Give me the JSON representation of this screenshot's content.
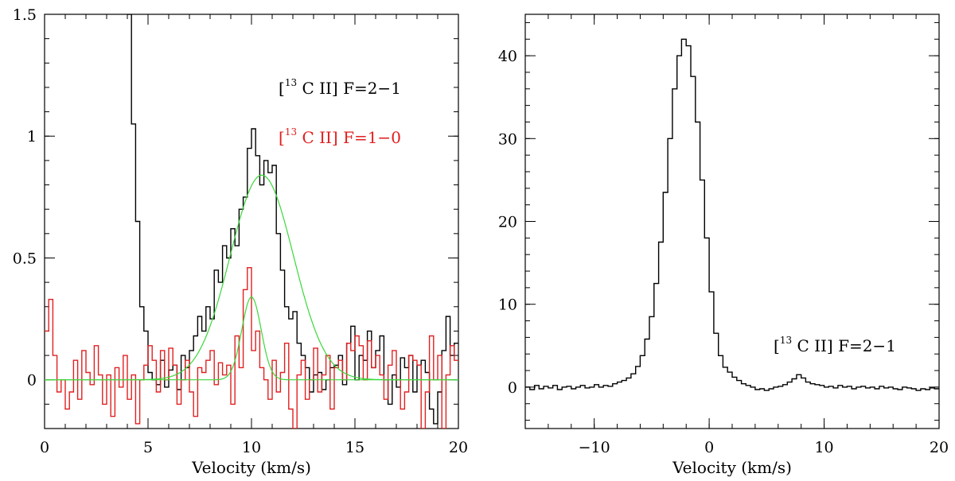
{
  "chart_data": [
    {
      "type": "line",
      "subtype": "step",
      "xlabel": "Velocity (km/s)",
      "ylabel": "",
      "xlim": [
        0,
        20
      ],
      "ylim": [
        -0.2,
        1.5
      ],
      "xticks": [
        "0",
        "5",
        "10",
        "15",
        "20"
      ],
      "yticks": [
        "0",
        "0.5",
        "1",
        "1.5"
      ],
      "annotations": [
        {
          "text": "[13 C II] F=2−1",
          "color": "#000000",
          "pre": "[",
          "sup": "13",
          "post": " C II] F=2−1"
        },
        {
          "text": "[13 C II] F=1−0",
          "color": "#e02020",
          "pre": "[",
          "sup": "13",
          "post": " C II] F=1−0"
        }
      ],
      "series": [
        {
          "color": "#000000",
          "style": "step",
          "x": [
            4.0,
            4.2,
            4.4,
            4.6,
            4.8,
            5.0,
            5.2,
            5.4,
            5.6,
            5.8,
            6.0,
            6.2,
            6.4,
            6.6,
            6.8,
            7.0,
            7.2,
            7.4,
            7.6,
            7.8,
            8.0,
            8.2,
            8.4,
            8.6,
            8.8,
            9.0,
            9.2,
            9.4,
            9.6,
            9.8,
            10.0,
            10.2,
            10.4,
            10.6,
            10.8,
            11.0,
            11.2,
            11.4,
            11.6,
            11.8,
            12.0,
            12.2,
            12.4,
            12.6,
            12.8,
            13.0,
            13.2,
            13.4,
            13.6,
            13.8,
            14.0,
            14.2,
            14.4,
            14.6,
            14.8,
            15.0,
            15.2,
            15.4,
            15.6,
            15.8,
            16.0,
            16.2,
            16.4,
            16.6,
            16.8,
            17.0,
            17.2,
            17.4,
            17.6,
            17.8,
            18.0,
            18.2,
            18.4,
            18.6,
            18.8,
            19.0,
            19.2,
            19.4,
            19.6,
            19.8
          ],
          "values": [
            1.5,
            1.05,
            0.65,
            0.3,
            0.2,
            0.03,
            0.0,
            -0.02,
            0.08,
            -0.03,
            0.04,
            0.06,
            -0.04,
            0.1,
            0.05,
            0.12,
            0.18,
            0.26,
            0.2,
            0.3,
            0.25,
            0.45,
            0.4,
            0.55,
            0.5,
            0.62,
            0.55,
            0.7,
            0.75,
            0.95,
            1.03,
            0.92,
            0.8,
            0.9,
            0.85,
            0.88,
            0.6,
            0.45,
            0.3,
            0.25,
            0.28,
            0.15,
            0.1,
            0.05,
            -0.05,
            0.02,
            0.03,
            -0.04,
            0.0,
            0.05,
            0.06,
            0.1,
            -0.02,
            0.15,
            0.22,
            0.0,
            0.1,
            0.08,
            0.2,
            0.05,
            0.12,
            0.18,
            0.0,
            -0.1,
            0.02,
            -0.03,
            0.09,
            0.05,
            0.1,
            -0.05,
            0.06,
            0.08,
            0.03,
            -0.12,
            -0.18,
            -0.05,
            0.12,
            0.26,
            0.1,
            0.15
          ]
        },
        {
          "color": "#e02020",
          "style": "step",
          "x": [
            0.0,
            0.2,
            0.4,
            0.6,
            0.8,
            1.0,
            1.2,
            1.4,
            1.6,
            1.8,
            2.0,
            2.2,
            2.4,
            2.6,
            2.8,
            3.0,
            3.2,
            3.4,
            3.6,
            3.8,
            4.0,
            4.2,
            4.4,
            4.6,
            4.8,
            5.0,
            5.2,
            5.4,
            5.6,
            5.8,
            6.0,
            6.2,
            6.4,
            6.6,
            6.8,
            7.0,
            7.2,
            7.4,
            7.6,
            7.8,
            8.0,
            8.2,
            8.4,
            8.6,
            8.8,
            9.0,
            9.2,
            9.4,
            9.6,
            9.8,
            10.0,
            10.2,
            10.4,
            10.6,
            10.8,
            11.0,
            11.2,
            11.4,
            11.6,
            11.8,
            12.0,
            12.2,
            12.4,
            12.6,
            12.8,
            13.0,
            13.2,
            13.4,
            13.6,
            13.8,
            14.0,
            14.2,
            14.4,
            14.6,
            14.8,
            15.0,
            15.2,
            15.4,
            15.6,
            15.8,
            16.0,
            16.2,
            16.4,
            16.6,
            16.8,
            17.0,
            17.2,
            17.4,
            17.6,
            17.8,
            18.0,
            18.2,
            18.4,
            18.6,
            18.8,
            19.0,
            19.2,
            19.4,
            19.6,
            19.8
          ],
          "values": [
            0.2,
            0.33,
            0.1,
            -0.05,
            0.0,
            -0.12,
            -0.05,
            0.08,
            -0.08,
            0.12,
            0.03,
            -0.02,
            0.14,
            0.02,
            -0.1,
            0.02,
            -0.15,
            0.05,
            -0.03,
            0.1,
            -0.08,
            0.02,
            -0.18,
            0.0,
            0.06,
            0.14,
            0.08,
            -0.05,
            0.12,
            0.0,
            0.13,
            0.06,
            -0.1,
            0.0,
            0.08,
            -0.05,
            -0.15,
            0.05,
            0.03,
            0.08,
            0.12,
            -0.02,
            0.07,
            0.02,
            0.06,
            -0.1,
            0.18,
            0.05,
            0.37,
            0.46,
            0.12,
            0.2,
            0.05,
            0.0,
            -0.08,
            0.08,
            -0.05,
            0.03,
            0.15,
            -0.12,
            -0.2,
            0.02,
            0.08,
            -0.08,
            0.0,
            0.13,
            -0.05,
            0.02,
            0.1,
            -0.12,
            0.05,
            0.08,
            0.0,
            0.15,
            0.12,
            0.18,
            0.14,
            0.0,
            0.16,
            0.05,
            0.1,
            0.02,
            -0.08,
            0.06,
            0.12,
            0.0,
            -0.12,
            -0.05,
            0.1,
            0.08,
            0.06,
            -0.2,
            -0.05,
            0.18,
            0.0,
            0.1,
            -0.25,
            0.02,
            0.14,
            0.08
          ]
        },
        {
          "color": "#3ad83a",
          "style": "smooth",
          "gaussian": {
            "amplitude": 0.84,
            "center": 10.5,
            "fwhm": 3.6
          }
        },
        {
          "color": "#3ad83a",
          "style": "smooth",
          "gaussian": {
            "amplitude": 0.34,
            "center": 10.0,
            "fwhm": 1.1
          }
        }
      ]
    },
    {
      "type": "line",
      "subtype": "step",
      "xlabel": "Velocity (km/s)",
      "ylabel": "",
      "xlim": [
        -16,
        20
      ],
      "ylim": [
        -5,
        45
      ],
      "xticks": [
        "−10",
        "0",
        "10",
        "20"
      ],
      "yticks": [
        "0",
        "10",
        "20",
        "30",
        "40"
      ],
      "annotations": [
        {
          "text": "[13 C II] F=2−1",
          "color": "#000000",
          "pre": "[",
          "sup": "13",
          "post": " C II] F=2−1"
        }
      ],
      "series": [
        {
          "color": "#000000",
          "style": "step",
          "x": [
            -16.0,
            -15.6,
            -15.2,
            -14.8,
            -14.4,
            -14.0,
            -13.6,
            -13.2,
            -12.8,
            -12.4,
            -12.0,
            -11.6,
            -11.2,
            -10.8,
            -10.4,
            -10.0,
            -9.6,
            -9.2,
            -8.8,
            -8.4,
            -8.0,
            -7.6,
            -7.2,
            -6.8,
            -6.4,
            -6.0,
            -5.6,
            -5.2,
            -4.8,
            -4.4,
            -4.0,
            -3.6,
            -3.2,
            -2.8,
            -2.4,
            -2.0,
            -1.6,
            -1.2,
            -0.8,
            -0.4,
            0.0,
            0.4,
            0.8,
            1.2,
            1.6,
            2.0,
            2.4,
            2.8,
            3.2,
            3.6,
            4.0,
            4.4,
            4.8,
            5.2,
            5.6,
            6.0,
            6.4,
            6.8,
            7.2,
            7.6,
            8.0,
            8.4,
            8.8,
            9.2,
            9.6,
            10.0,
            10.4,
            10.8,
            11.2,
            11.6,
            12.0,
            12.4,
            12.8,
            13.2,
            13.6,
            14.0,
            14.4,
            14.8,
            15.2,
            15.6,
            16.0,
            16.4,
            16.8,
            17.2,
            17.6,
            18.0,
            18.4,
            18.8,
            19.2,
            19.6
          ],
          "values": [
            0.0,
            -0.3,
            0.2,
            -0.2,
            0.1,
            -0.1,
            0.2,
            -0.3,
            0.0,
            0.1,
            -0.2,
            0.0,
            0.2,
            -0.1,
            0.0,
            0.3,
            0.0,
            0.2,
            0.1,
            0.4,
            0.6,
            0.8,
            1.1,
            1.6,
            2.5,
            3.8,
            5.8,
            8.5,
            12.5,
            17.5,
            23.5,
            30.0,
            36.0,
            40.0,
            42.0,
            41.2,
            37.5,
            32.0,
            25.0,
            18.0,
            11.5,
            6.5,
            3.8,
            2.4,
            1.8,
            1.2,
            0.8,
            0.4,
            0.2,
            0.0,
            -0.3,
            -0.2,
            -0.4,
            -0.2,
            0.0,
            0.1,
            0.3,
            0.6,
            1.0,
            1.5,
            1.1,
            0.6,
            0.4,
            0.3,
            0.2,
            0.0,
            0.1,
            -0.1,
            0.2,
            0.0,
            0.1,
            -0.2,
            0.0,
            0.1,
            -0.1,
            0.0,
            -0.2,
            0.1,
            -0.1,
            0.0,
            -0.2,
            -0.3,
            0.0,
            -0.1,
            -0.2,
            -0.4,
            -0.2,
            -0.3,
            -0.1,
            -0.2
          ]
        }
      ]
    }
  ]
}
